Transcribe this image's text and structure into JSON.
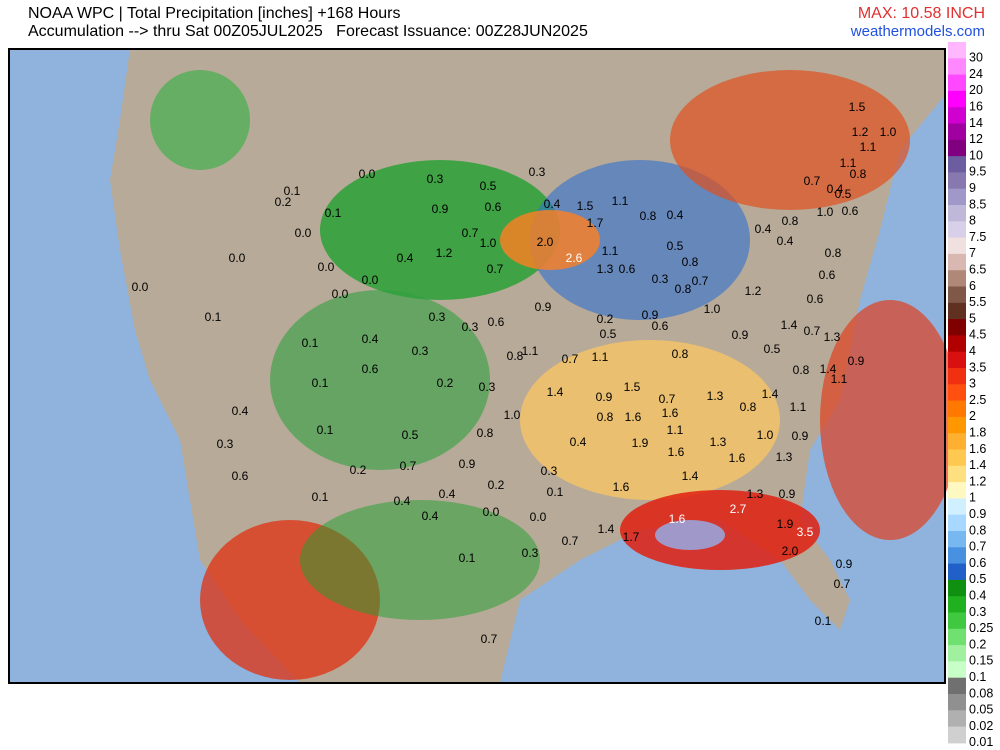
{
  "header": {
    "title": "NOAA WPC | Total Precipitation [inches] +168 Hours",
    "subtitle": "Accumulation --> thru Sat 00Z05JUL2025   Forecast Issuance: 00Z28JUN2025",
    "max": "MAX: 10.58 INCH",
    "site": "weathermodels.com"
  },
  "legend": {
    "labels": [
      "30",
      "24",
      "20",
      "16",
      "14",
      "12",
      "10",
      "9.5",
      "9",
      "8.5",
      "8",
      "7.5",
      "7",
      "6.5",
      "6",
      "5.5",
      "5",
      "4.5",
      "4",
      "3.5",
      "3",
      "2.5",
      "2",
      "1.8",
      "1.6",
      "1.4",
      "1.2",
      "1",
      "0.9",
      "0.8",
      "0.7",
      "0.6",
      "0.5",
      "0.4",
      "0.3",
      "0.25",
      "0.2",
      "0.15",
      "0.1",
      "0.08",
      "0.05",
      "0.02",
      "0.01"
    ],
    "colors": [
      "#ffb8ff",
      "#ff88ff",
      "#ff48ff",
      "#ff00ff",
      "#d000d0",
      "#a000a0",
      "#800080",
      "#6c5ca0",
      "#8878b0",
      "#a098c8",
      "#c0b8d8",
      "#d8d0e8",
      "#f0e0e0",
      "#d8b8b0",
      "#b08878",
      "#805848",
      "#603020",
      "#800000",
      "#b00000",
      "#d81010",
      "#f03010",
      "#ff5010",
      "#ff7800",
      "#ff9800",
      "#ffb030",
      "#ffc850",
      "#ffe080",
      "#fff8c0",
      "#d0f0ff",
      "#a8d8ff",
      "#78b8f0",
      "#4890e0",
      "#2060c8",
      "#109010",
      "#20b020",
      "#40c840",
      "#70e070",
      "#a0f0a0",
      "#c8ffc8",
      "#707070",
      "#909090",
      "#b0b0b0",
      "#d0d0d0"
    ]
  },
  "map": {
    "labels": [
      "0.0",
      "0.3",
      "0.5",
      "0.3",
      "0.1",
      "0.2",
      "0.1",
      "0.9",
      "0.6",
      "0.4",
      "1.5",
      "1.1",
      "0.0",
      "0.7",
      "1.7",
      "0.4",
      "1.0",
      "2.0",
      "1.2",
      "0.4",
      "0.0",
      "0.0",
      "1.1",
      "2.6",
      "0.7",
      "1.3",
      "0.6",
      "0.0",
      "0.0",
      "0.0",
      "0.1",
      "0.3",
      "0.3",
      "0.6",
      "0.9",
      "0.2",
      "0.5",
      "0.9",
      "0.6",
      "1.0",
      "1.2",
      "0.4",
      "0.1",
      "0.3",
      "0.6",
      "0.8",
      "1.1",
      "0.7",
      "1.1",
      "0.8",
      "0.9",
      "0.5",
      "0.2",
      "0.3",
      "1.4",
      "0.9",
      "1.5",
      "0.7",
      "1.3",
      "1.4",
      "0.1",
      "0.4",
      "0.1",
      "0.5",
      "0.8",
      "1.0",
      "0.8",
      "1.6",
      "1.6",
      "0.8",
      "1.1",
      "0.3",
      "0.6",
      "0.2",
      "0.7",
      "0.9",
      "0.4",
      "1.9",
      "1.1",
      "1.3",
      "1.0",
      "0.9",
      "0.3",
      "1.6",
      "1.6",
      "1.3",
      "0.1",
      "0.4",
      "0.4",
      "0.2",
      "0.1",
      "1.6",
      "1.4",
      "1.3",
      "0.9",
      "0.4",
      "0.0",
      "0.0",
      "2.7",
      "1.4",
      "1.7",
      "1.6",
      "1.9",
      "3.5",
      "0.7",
      "0.3",
      "0.1",
      "2.0",
      "0.9",
      "0.7",
      "0.7",
      "0.1",
      "1.5",
      "1.2",
      "1.0",
      "1.1",
      "1.1",
      "0.7",
      "0.4",
      "0.5",
      "0.8",
      "1.0",
      "0.8",
      "0.4",
      "0.6",
      "0.4",
      "0.8",
      "0.6",
      "0.6",
      "1.4",
      "0.7",
      "1.3",
      "0.9",
      "1.4",
      "1.1",
      "0.8",
      "0.3",
      "0.8",
      "0.7",
      "0.8",
      "0.5",
      "0.8"
    ]
  }
}
